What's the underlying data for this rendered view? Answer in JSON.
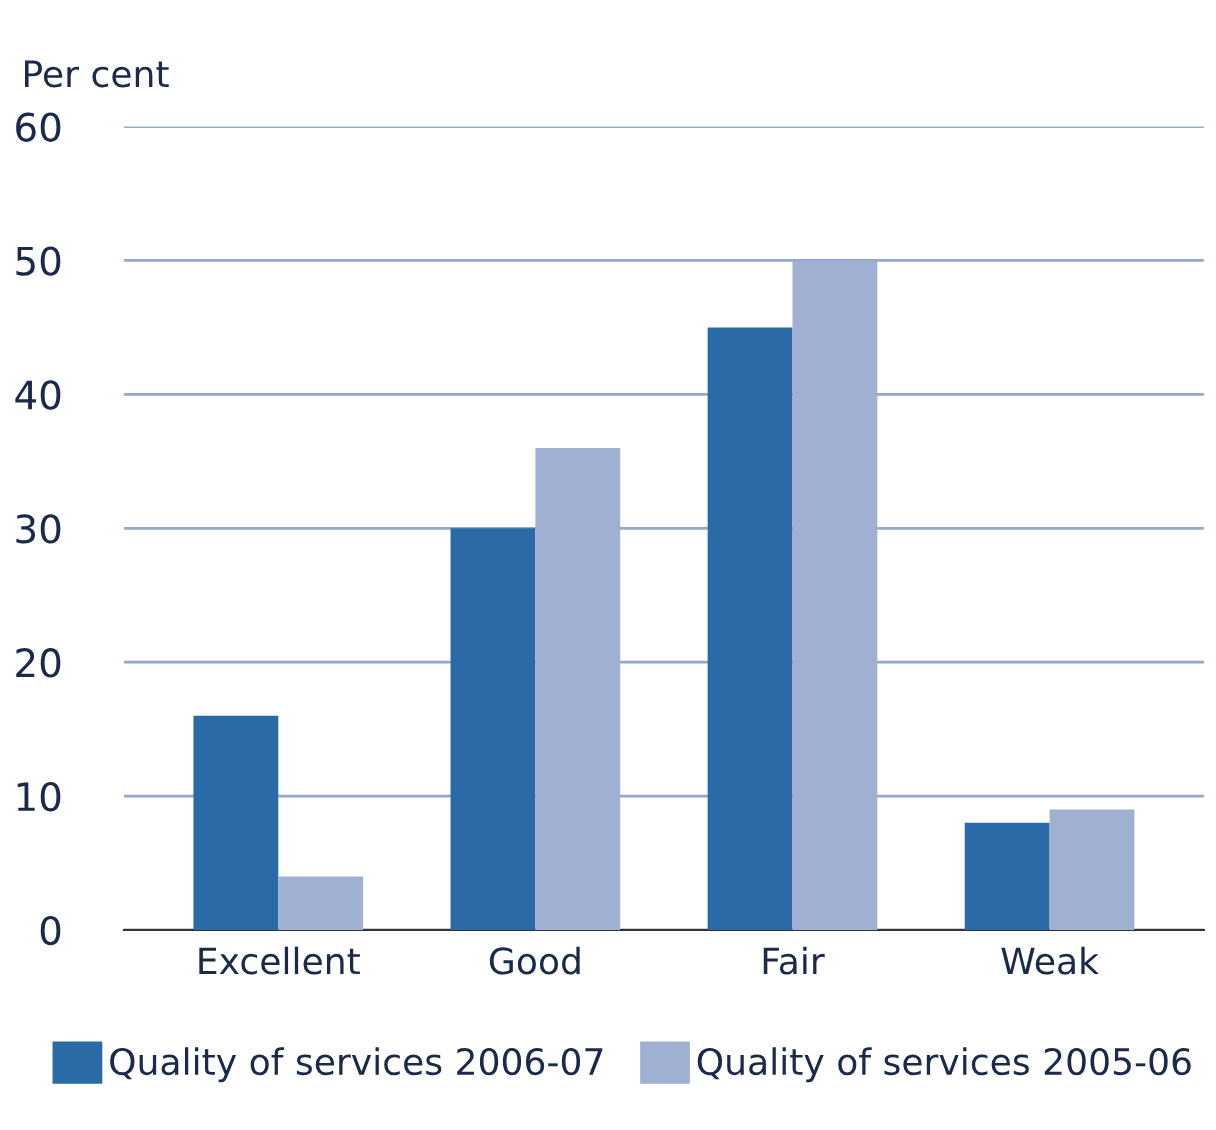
{
  "chart_data": {
    "type": "bar",
    "ylabel": "Per cent",
    "categories": [
      "Excellent",
      "Good",
      "Fair",
      "Weak"
    ],
    "series": [
      {
        "name": "Quality of services 2006-07",
        "color": "#2a6aa6",
        "values": [
          16,
          30,
          45,
          8
        ]
      },
      {
        "name": "Quality of services 2005-06",
        "color": "#9fb0d2",
        "values": [
          4,
          36,
          50,
          9
        ]
      }
    ],
    "ylim": [
      0,
      60
    ],
    "yticks": [
      0,
      10,
      20,
      30,
      40,
      50,
      60
    ],
    "grid": "y",
    "legend": "bottom"
  }
}
